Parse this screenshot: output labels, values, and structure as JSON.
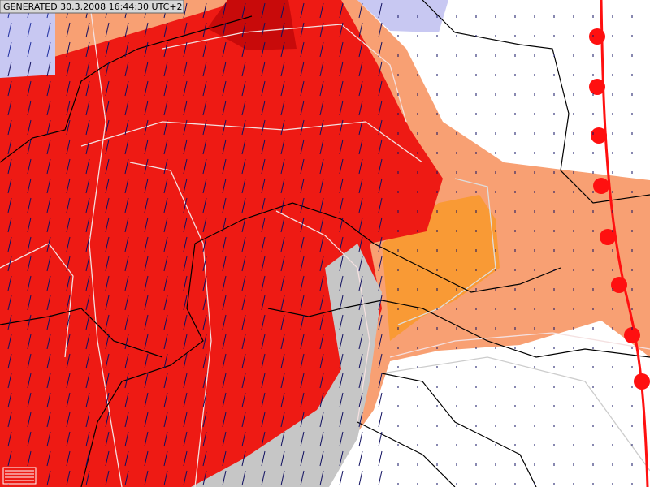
{
  "header": {
    "generated": "GENERATED 30.3.2008 16:44:30 UTC+2"
  }
}
